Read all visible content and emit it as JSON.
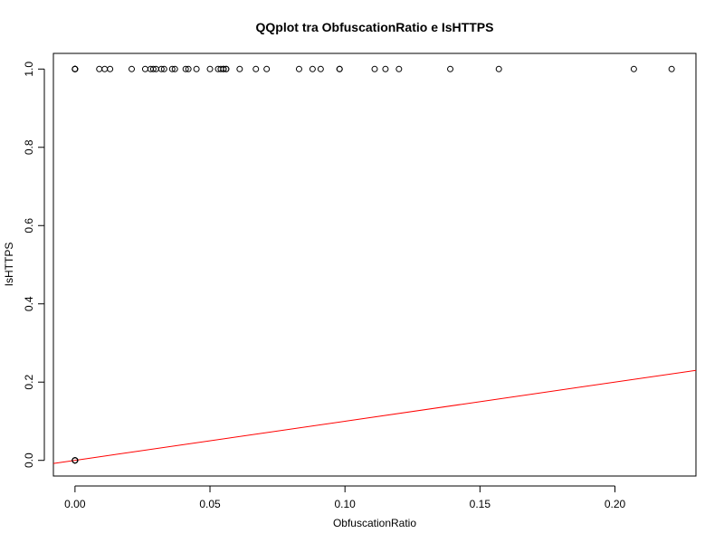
{
  "chart_data": {
    "type": "scatter",
    "title": "QQplot tra ObfuscationRatio e IsHTTPS",
    "xlabel": "ObfuscationRatio",
    "ylabel": "IsHTTPS",
    "xlim": [
      -0.008,
      0.23
    ],
    "ylim": [
      -0.04,
      1.04
    ],
    "xticks": [
      0.0,
      0.05,
      0.1,
      0.15,
      0.2
    ],
    "xtick_labels": [
      "0.00",
      "0.05",
      "0.10",
      "0.15",
      "0.20"
    ],
    "yticks": [
      0.0,
      0.2,
      0.4,
      0.6,
      0.8,
      1.0
    ],
    "ytick_labels": [
      "0.0",
      "0.2",
      "0.4",
      "0.6",
      "0.8",
      "1.0"
    ],
    "grid": false,
    "legend": "none",
    "colors": {
      "points": "#000000",
      "reference_line": "#ff0000",
      "frame": "#000000"
    },
    "series": [
      {
        "kind": "points",
        "marker": "open-circle",
        "x": [
          0.0,
          0.0,
          0.0,
          0.0,
          0.0,
          0.0,
          0.0,
          0.0,
          0.0,
          0.0,
          0.0,
          0.009,
          0.011,
          0.013,
          0.021,
          0.026,
          0.028,
          0.029,
          0.03,
          0.032,
          0.033,
          0.036,
          0.037,
          0.041,
          0.042,
          0.045,
          0.05,
          0.053,
          0.054,
          0.055,
          0.055,
          0.056,
          0.056,
          0.061,
          0.067,
          0.071,
          0.083,
          0.088,
          0.091,
          0.098,
          0.098,
          0.111,
          0.115,
          0.12,
          0.139,
          0.157,
          0.207,
          0.221
        ],
        "y": [
          0,
          0,
          0,
          0,
          0,
          0,
          1,
          1,
          1,
          1,
          1,
          1,
          1,
          1,
          1,
          1,
          1,
          1,
          1,
          1,
          1,
          1,
          1,
          1,
          1,
          1,
          1,
          1,
          1,
          1,
          1,
          1,
          1,
          1,
          1,
          1,
          1,
          1,
          1,
          1,
          1,
          1,
          1,
          1,
          1,
          1,
          1,
          1
        ]
      },
      {
        "kind": "reference-line",
        "x": [
          -0.008,
          0.23
        ],
        "y": [
          -0.008,
          0.23
        ]
      }
    ]
  }
}
